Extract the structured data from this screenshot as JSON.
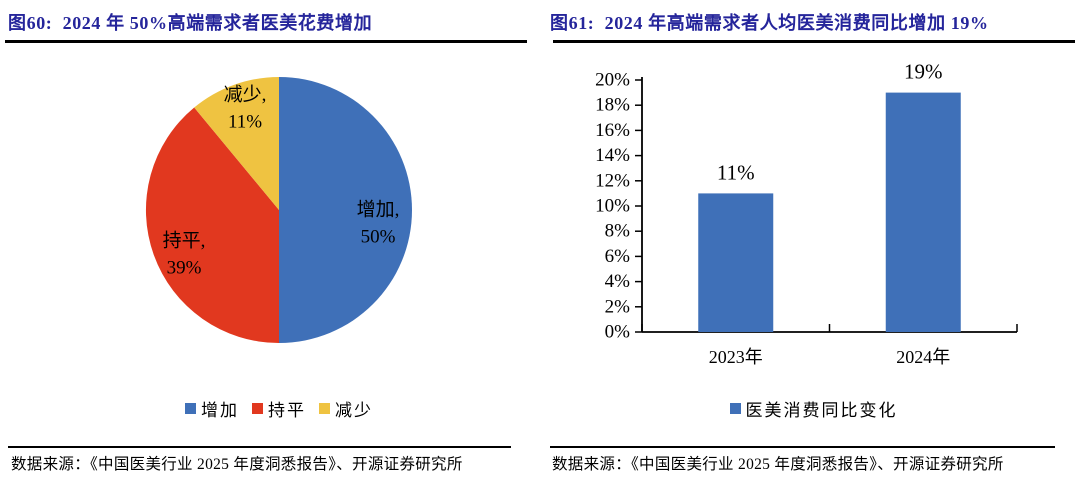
{
  "colors": {
    "title_text": "#25259B",
    "pie_blue": "#3F70B8",
    "pie_red": "#E1381F",
    "pie_yellow": "#EFC341",
    "bar_blue": "#3F70B8",
    "rule": "#000000"
  },
  "left_panel": {
    "title": "图60:  2024 年 50%高端需求者医美花费增加",
    "source": "数据来源：《中国医美行业 2025 年度洞悉报告》、开源证券研究所",
    "chart_data": {
      "type": "pie",
      "labels": [
        "增加",
        "持平",
        "减少"
      ],
      "values": [
        50,
        39,
        11
      ],
      "unit": "%",
      "colors": [
        "#3F70B8",
        "#E1381F",
        "#EFC341"
      ],
      "start_angle_deg": 0,
      "direction": "clockwise",
      "slice_label_format": "{label}, {value}%",
      "legend_position": "bottom"
    }
  },
  "right_panel": {
    "title": "图61:  2024 年高端需求者人均医美消费同比增加 19%",
    "source": "数据来源：《中国医美行业 2025 年度洞悉报告》、开源证券研究所",
    "chart_data": {
      "type": "bar",
      "categories": [
        "2023年",
        "2024年"
      ],
      "values": [
        11,
        19
      ],
      "unit": "%",
      "data_labels": [
        "11%",
        "19%"
      ],
      "bar_color": "#3F70B8",
      "ylim": [
        0,
        20
      ],
      "ytick_step": 2,
      "ytick_suffix": "%",
      "grid": "off",
      "legend": [
        "医美消费同比变化"
      ],
      "legend_position": "bottom"
    }
  }
}
